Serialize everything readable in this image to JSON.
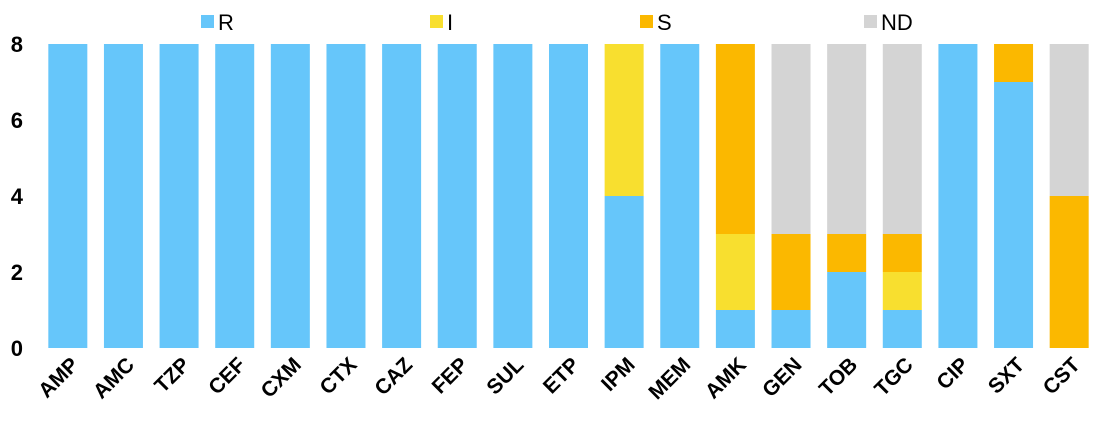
{
  "chart_data": {
    "type": "bar",
    "stacked": true,
    "categories": [
      "AMP",
      "AMC",
      "TZP",
      "CEF",
      "CXM",
      "CTX",
      "CAZ",
      "FEP",
      "SUL",
      "ETP",
      "IPM",
      "MEM",
      "AMK",
      "GEN",
      "TOB",
      "TGC",
      "CIP",
      "SXT",
      "CST"
    ],
    "series": [
      {
        "name": "R",
        "color": "#66c6fa",
        "values": [
          8,
          8,
          8,
          8,
          8,
          8,
          8,
          8,
          8,
          8,
          4,
          8,
          1,
          1,
          2,
          1,
          8,
          7,
          0
        ]
      },
      {
        "name": "I",
        "color": "#f8df2f",
        "values": [
          0,
          0,
          0,
          0,
          0,
          0,
          0,
          0,
          0,
          0,
          4,
          0,
          2,
          0,
          0,
          1,
          0,
          0,
          0
        ]
      },
      {
        "name": "S",
        "color": "#fbb800",
        "values": [
          0,
          0,
          0,
          0,
          0,
          0,
          0,
          0,
          0,
          0,
          0,
          0,
          5,
          2,
          1,
          1,
          0,
          1,
          4
        ]
      },
      {
        "name": "ND",
        "color": "#d4d4d4",
        "values": [
          0,
          0,
          0,
          0,
          0,
          0,
          0,
          0,
          0,
          0,
          0,
          0,
          0,
          5,
          5,
          5,
          0,
          0,
          4
        ]
      }
    ],
    "y_ticks": [
      "0",
      "2",
      "4",
      "6",
      "8"
    ],
    "ylim": [
      0,
      8
    ],
    "grid": false,
    "legend_position": "top"
  }
}
